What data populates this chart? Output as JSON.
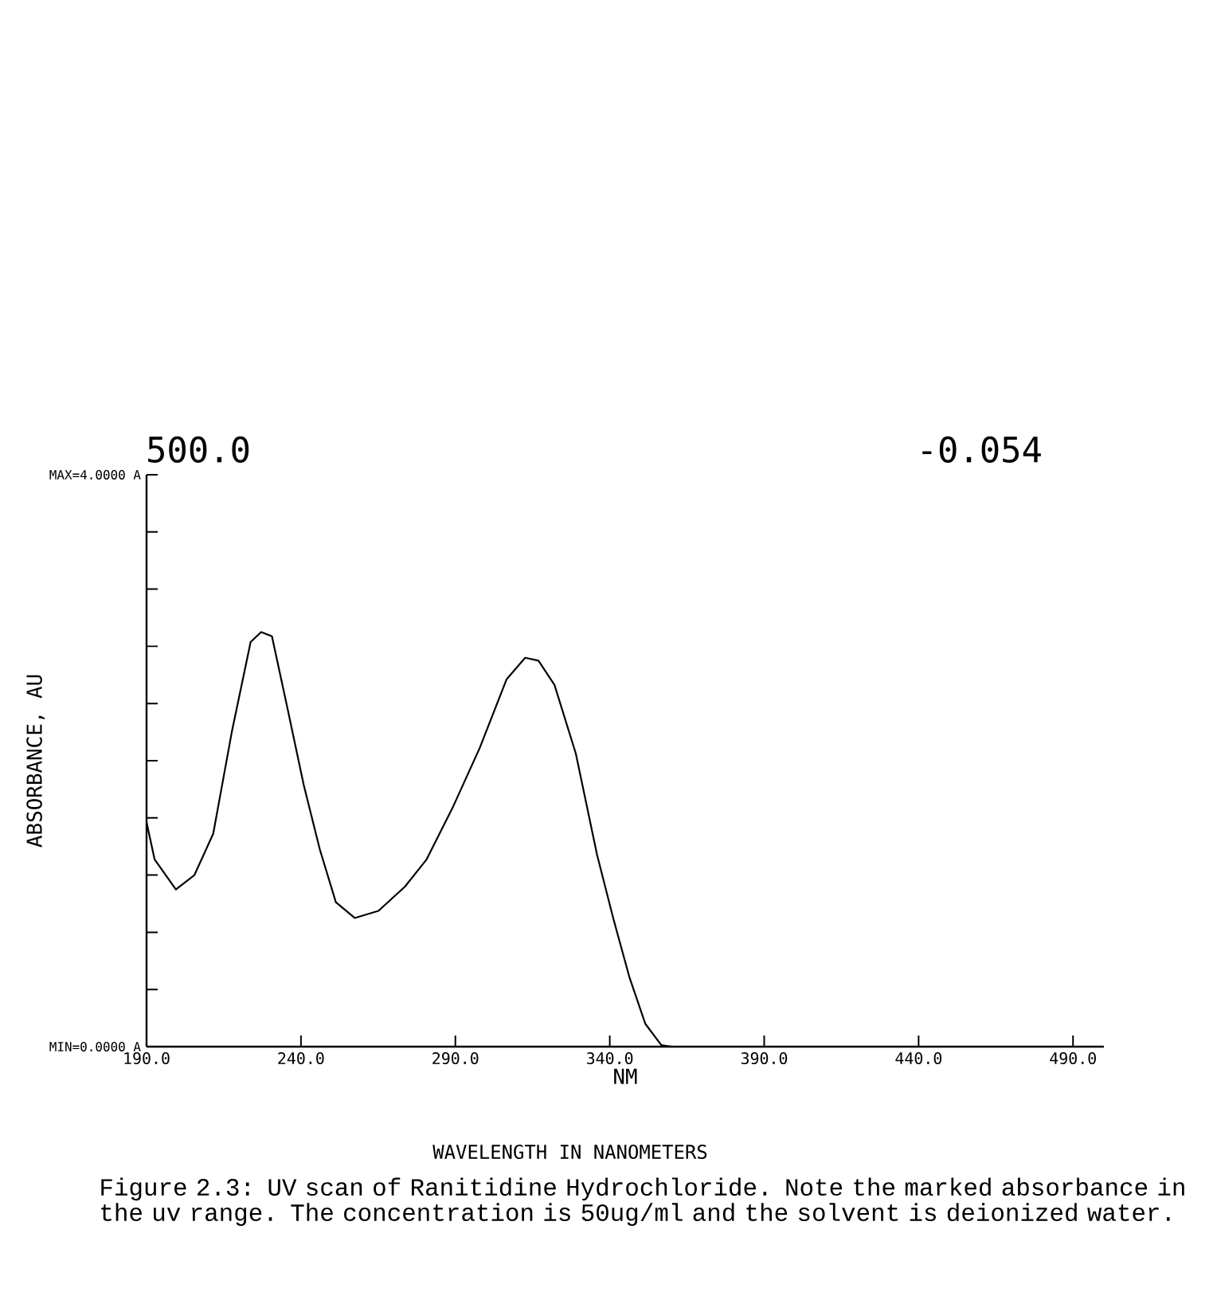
{
  "chart_data": {
    "type": "line",
    "xlabel": "NM",
    "ylabel": "ABSORBANCE, AU",
    "annotations": [
      "500.0",
      "-0.054",
      "WAVELENGTH IN NANOMETERS",
      "Figure 2.3: UV scan of Ranitidine Hydrochloride.  Note the marked absorbance in the uv range.  The concentration is 50ug/ml and the solvent is deionized water."
    ],
    "series": [
      {
        "color": "#000000",
        "x": [
          190,
          192.6,
          199.5,
          205.5,
          211.6,
          217.6,
          223.7,
          227.1,
          230.6,
          235.8,
          240.9,
          246.1,
          251.3,
          257.4,
          265.1,
          273.7,
          280.7,
          289.3,
          297.9,
          306.6,
          312.6,
          316.9,
          322.1,
          329.0,
          335.9,
          341.1,
          346.3,
          351.5,
          356.7,
          360,
          400,
          450,
          500
        ],
        "values": [
          1.57,
          1.31,
          1.1,
          1.2,
          1.49,
          2.2,
          2.83,
          2.9,
          2.87,
          2.35,
          1.83,
          1.38,
          1.01,
          0.9,
          0.95,
          1.12,
          1.31,
          1.68,
          2.09,
          2.57,
          2.72,
          2.7,
          2.53,
          2.05,
          1.34,
          0.9,
          0.49,
          0.16,
          0.01,
          0,
          0,
          0,
          0
        ]
      }
    ],
    "xlim": [
      190,
      500
    ],
    "ylim": [
      0,
      4
    ],
    "xticks": [
      {
        "value": 190,
        "label": "190.0"
      },
      {
        "value": 240,
        "label": "240.0"
      },
      {
        "value": 290,
        "label": "290.0"
      },
      {
        "value": 340,
        "label": "340.0"
      },
      {
        "value": 390,
        "label": "390.0"
      },
      {
        "value": 440,
        "label": "440.0"
      },
      {
        "value": 490,
        "label": "490.0"
      }
    ],
    "yticks": [
      {
        "value": 0,
        "label": "MIN=0.0000 A"
      },
      {
        "value": 0.4,
        "label": null
      },
      {
        "value": 0.8,
        "label": null
      },
      {
        "value": 1.2,
        "label": null
      },
      {
        "value": 1.6,
        "label": null
      },
      {
        "value": 2.0,
        "label": null
      },
      {
        "value": 2.4,
        "label": null
      },
      {
        "value": 2.8,
        "label": null
      },
      {
        "value": 3.2,
        "label": null
      },
      {
        "value": 3.6,
        "label": null
      },
      {
        "value": 4.0,
        "label": "MAX=4.0000 A"
      }
    ],
    "marker": "none",
    "line_style": "solid",
    "grid": false
  }
}
